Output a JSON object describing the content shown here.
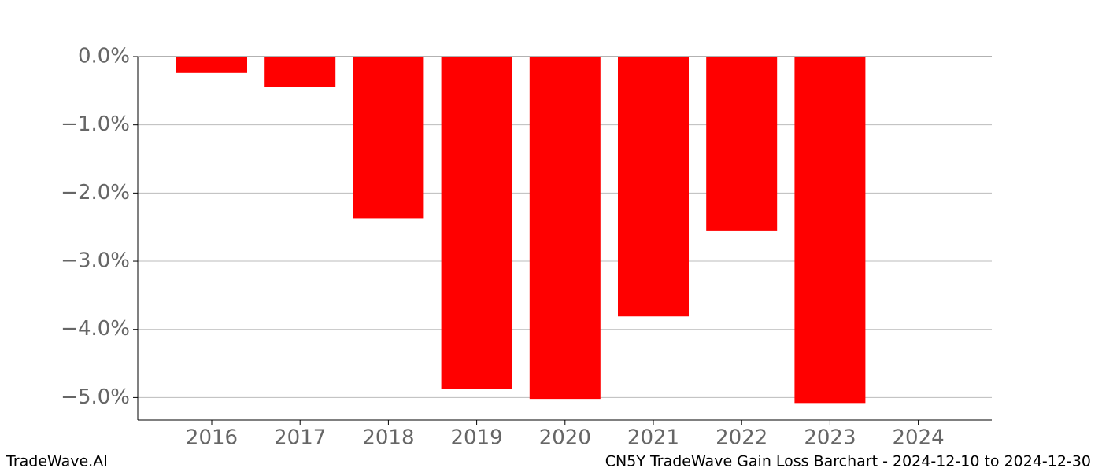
{
  "chart_data": {
    "type": "bar",
    "categories": [
      "2016",
      "2017",
      "2018",
      "2019",
      "2020",
      "2021",
      "2022",
      "2023",
      "2024"
    ],
    "values": [
      -0.24,
      -0.44,
      -2.37,
      -4.87,
      -5.02,
      -3.81,
      -2.56,
      -5.08,
      null
    ],
    "color": "#ff0000",
    "ylim": [
      -5.33,
      0
    ],
    "yticks": [
      {
        "value": 0,
        "label": "0.0%"
      },
      {
        "value": -1,
        "label": "−1.0%"
      },
      {
        "value": -2,
        "label": "−2.0%"
      },
      {
        "value": -3,
        "label": "−3.0%"
      },
      {
        "value": -4,
        "label": "−4.0%"
      },
      {
        "value": -5,
        "label": "−5.0%"
      }
    ],
    "grid": true,
    "footer_left": "TradeWave.AI",
    "footer_right": "CN5Y TradeWave Gain Loss Barchart - 2024-12-10 to 2024-12-30"
  }
}
